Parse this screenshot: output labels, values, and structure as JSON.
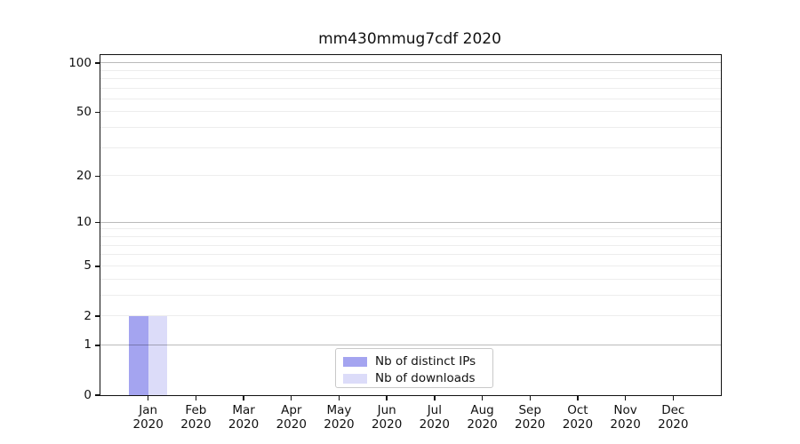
{
  "chart_data": {
    "type": "bar",
    "title": "mm430mmug7cdf 2020",
    "categories": [
      "Jan",
      "Feb",
      "Mar",
      "Apr",
      "May",
      "Jun",
      "Jul",
      "Aug",
      "Sep",
      "Oct",
      "Nov",
      "Dec"
    ],
    "category_sublabel": "2020",
    "series": [
      {
        "name": "Nb of distinct IPs",
        "color": "#a4a4f0",
        "values": [
          2,
          0,
          0,
          0,
          0,
          0,
          0,
          0,
          0,
          0,
          0,
          0
        ]
      },
      {
        "name": "Nb of downloads",
        "color": "#dcdcf9",
        "values": [
          2,
          0,
          0,
          0,
          0,
          0,
          0,
          0,
          0,
          0,
          0,
          0
        ]
      }
    ],
    "xlabel": "",
    "ylabel": "",
    "y_axis": {
      "scale": "log10(1+x)",
      "ticks": [
        0,
        1,
        2,
        5,
        10,
        20,
        50,
        100
      ],
      "major_gridlines": [
        1,
        10,
        100
      ],
      "minor_gridlines": [
        2,
        3,
        4,
        5,
        6,
        7,
        8,
        9,
        20,
        30,
        40,
        50,
        60,
        70,
        80,
        90
      ],
      "ylim": [
        0,
        112
      ]
    },
    "legend": {
      "position": "lower-center"
    },
    "grid": "on"
  }
}
